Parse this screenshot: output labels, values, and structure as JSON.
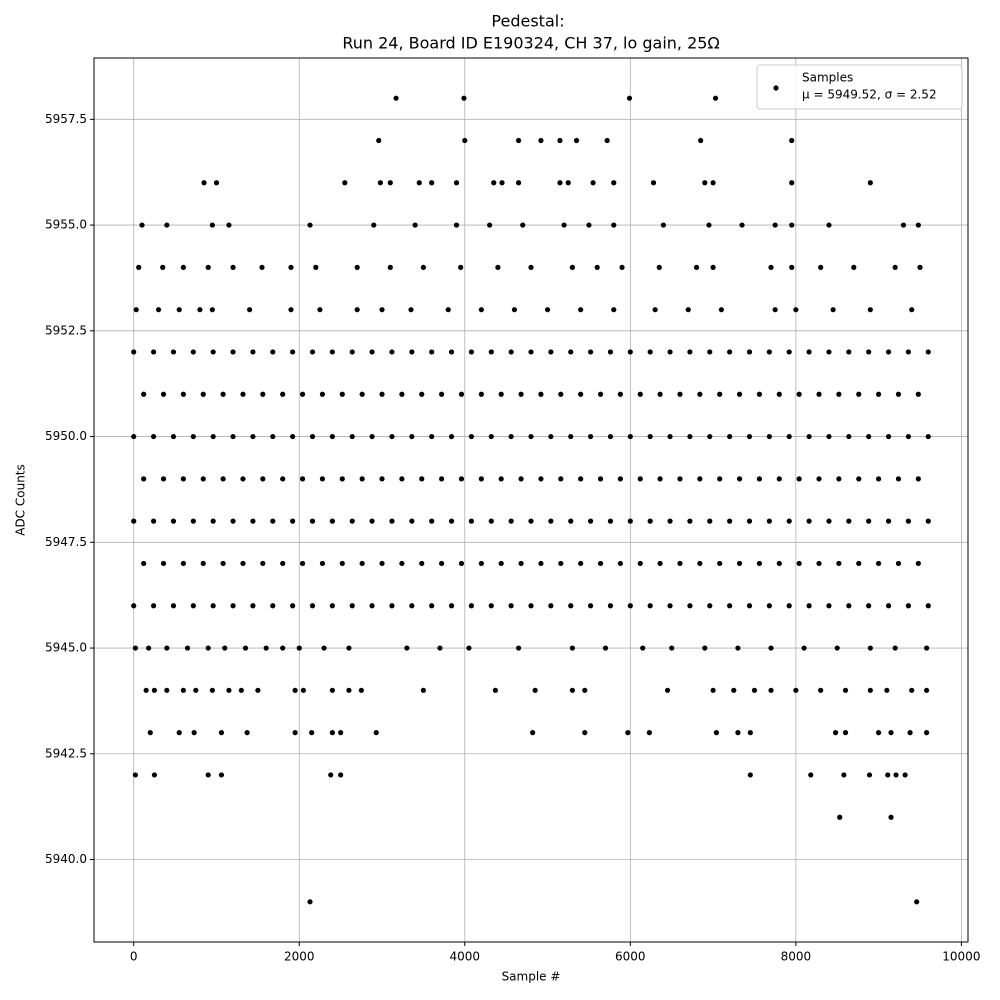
{
  "chart_data": {
    "type": "scatter",
    "title": "Pedestal:",
    "subtitle": "Run 24, Board ID E190324, CH 37, lo gain, 25Ω",
    "x_label": "Sample #",
    "y_label": "ADC Counts",
    "legend_note": "μ = 5949.52, σ = 2.52",
    "legend": "upper right",
    "grid": true,
    "xlim": [
      -480,
      10080
    ],
    "ylim": [
      5938.05,
      5958.95
    ],
    "xticks": [
      0,
      2000,
      4000,
      6000,
      8000,
      10000
    ],
    "yticks": [
      {
        "value": 5940,
        "label": "5940.0"
      },
      {
        "value": 5942.5,
        "label": "5942.5"
      },
      {
        "value": 5945,
        "label": "5945.0"
      },
      {
        "value": 5947.5,
        "label": "5947.5"
      },
      {
        "value": 5950,
        "label": "5950.0"
      },
      {
        "value": 5952.5,
        "label": "5952.5"
      },
      {
        "value": 5955,
        "label": "5955.0"
      },
      {
        "value": 5957.5,
        "label": "5957.5"
      }
    ],
    "series": [
      {
        "name": "Samples",
        "color": "#000000",
        "x": [
          0,
          240,
          480,
          720,
          960,
          1200,
          1440,
          1680,
          1920,
          2160,
          2400,
          2640,
          2880,
          3120,
          3360,
          3600,
          3840,
          4080,
          4320,
          4560,
          4800,
          5040,
          5280,
          5520,
          5760,
          6000,
          6240,
          6480,
          6720,
          6960,
          7200,
          7440,
          7680,
          7920,
          8160,
          8400,
          8640,
          8880,
          9120,
          9360,
          9600,
          120,
          360,
          600,
          840,
          1080,
          1320,
          1560,
          1800,
          2040,
          2280,
          2520,
          2760,
          3000,
          3240,
          3480,
          3720,
          3960,
          4200,
          4440,
          4680,
          4920,
          5160,
          5400,
          5640,
          5880,
          6120,
          6360,
          6600,
          6840,
          7080,
          7320,
          7560,
          7800,
          8040,
          8280,
          8520,
          8760,
          9000,
          9240,
          9480,
          0,
          240,
          480,
          720,
          960,
          1200,
          1440,
          1680,
          1920,
          2160,
          2400,
          2640,
          2880,
          3120,
          3360,
          3600,
          3840,
          4080,
          4320,
          4560,
          4800,
          5040,
          5280,
          5520,
          5760,
          6000,
          6240,
          6480,
          6720,
          6960,
          7200,
          7440,
          7680,
          7920,
          8160,
          8400,
          8640,
          8880,
          9120,
          9360,
          9600,
          120,
          360,
          600,
          840,
          1080,
          1320,
          1560,
          1800,
          2040,
          2280,
          2520,
          2760,
          3000,
          3240,
          3480,
          3720,
          3960,
          4200,
          4440,
          4680,
          4920,
          5160,
          5400,
          5640,
          5880,
          6120,
          6360,
          6600,
          6840,
          7080,
          7320,
          7560,
          7800,
          8040,
          8280,
          8520,
          8760,
          9000,
          9240,
          9480,
          0,
          240,
          480,
          720,
          960,
          1200,
          1440,
          1680,
          1920,
          2160,
          2400,
          2640,
          2880,
          3120,
          3360,
          3600,
          3840,
          4080,
          4320,
          4560,
          4800,
          5040,
          5280,
          5520,
          5760,
          6000,
          6240,
          6480,
          6720,
          6960,
          7200,
          7440,
          7680,
          7920,
          8160,
          8400,
          8640,
          8880,
          9120,
          9360,
          9600,
          120,
          360,
          600,
          840,
          1080,
          1320,
          1560,
          1800,
          2040,
          2280,
          2520,
          2760,
          3000,
          3240,
          3480,
          3720,
          3960,
          4200,
          4440,
          4680,
          4920,
          5160,
          5400,
          5640,
          5880,
          6120,
          6360,
          6600,
          6840,
          7080,
          7320,
          7560,
          7800,
          8040,
          8280,
          8520,
          8760,
          9000,
          9240,
          9480,
          0,
          240,
          480,
          720,
          960,
          1200,
          1440,
          1680,
          1920,
          2160,
          2400,
          2640,
          2880,
          3120,
          3360,
          3600,
          3840,
          4080,
          4320,
          4560,
          4800,
          5040,
          5280,
          5520,
          5760,
          6000,
          6240,
          6480,
          6720,
          6960,
          7200,
          7440,
          7680,
          7920,
          8160,
          8400,
          8640,
          8880,
          9120,
          9360,
          9600,
          20,
          180,
          400,
          650,
          900,
          1100,
          1350,
          1600,
          1800,
          2000,
          2300,
          2600,
          3300,
          3700,
          4050,
          4650,
          5300,
          5700,
          6150,
          6500,
          6900,
          7300,
          7700,
          8100,
          8500,
          8900,
          9200,
          9580,
          30,
          300,
          550,
          800,
          950,
          1400,
          1900,
          2250,
          2700,
          3000,
          3350,
          3800,
          4200,
          4600,
          5000,
          5400,
          5800,
          6300,
          6700,
          7100,
          7750,
          8000,
          8450,
          8900,
          9400,
          60,
          350,
          600,
          900,
          1200,
          1550,
          1900,
          2200,
          2700,
          3100,
          3500,
          3950,
          4400,
          4800,
          5300,
          5600,
          5900,
          6350,
          6800,
          7000,
          7700,
          7950,
          8300,
          8700,
          9200,
          9500,
          100,
          400,
          950,
          1150,
          2130,
          2900,
          3400,
          3900,
          4300,
          4700,
          5200,
          5500,
          5800,
          6400,
          6950,
          7350,
          7750,
          7950,
          8400,
          9300,
          9480,
          850,
          1000,
          2550,
          2980,
          3100,
          3450,
          3600,
          3900,
          4350,
          4450,
          4650,
          5150,
          5250,
          5550,
          5800,
          6280,
          6900,
          7000,
          7950,
          8900,
          2960,
          4000,
          4650,
          4920,
          5150,
          5350,
          5720,
          6850,
          7950,
          3170,
          3990,
          5990,
          7030,
          150,
          250,
          400,
          600,
          750,
          950,
          1150,
          1300,
          1500,
          1950,
          2050,
          2400,
          2600,
          2750,
          3500,
          4370,
          4850,
          5300,
          5450,
          6450,
          7000,
          7250,
          7500,
          7700,
          8000,
          8300,
          8600,
          8900,
          9100,
          9400,
          9580,
          200,
          550,
          730,
          1060,
          1370,
          1950,
          2150,
          2400,
          2500,
          2930,
          4820,
          5450,
          5970,
          6230,
          7040,
          7300,
          7450,
          8480,
          8600,
          9000,
          9150,
          9380,
          9580,
          20,
          250,
          900,
          1060,
          2380,
          2500,
          7450,
          8180,
          8580,
          8890,
          9110,
          9210,
          9320,
          8530,
          9150,
          2130,
          9460
        ],
        "values": [
          5952,
          5952,
          5952,
          5952,
          5952,
          5952,
          5952,
          5952,
          5952,
          5952,
          5952,
          5952,
          5952,
          5952,
          5952,
          5952,
          5952,
          5952,
          5952,
          5952,
          5952,
          5952,
          5952,
          5952,
          5952,
          5952,
          5952,
          5952,
          5952,
          5952,
          5952,
          5952,
          5952,
          5952,
          5952,
          5952,
          5952,
          5952,
          5952,
          5952,
          5952,
          5951,
          5951,
          5951,
          5951,
          5951,
          5951,
          5951,
          5951,
          5951,
          5951,
          5951,
          5951,
          5951,
          5951,
          5951,
          5951,
          5951,
          5951,
          5951,
          5951,
          5951,
          5951,
          5951,
          5951,
          5951,
          5951,
          5951,
          5951,
          5951,
          5951,
          5951,
          5951,
          5951,
          5951,
          5951,
          5951,
          5951,
          5951,
          5951,
          5951,
          5950,
          5950,
          5950,
          5950,
          5950,
          5950,
          5950,
          5950,
          5950,
          5950,
          5950,
          5950,
          5950,
          5950,
          5950,
          5950,
          5950,
          5950,
          5950,
          5950,
          5950,
          5950,
          5950,
          5950,
          5950,
          5950,
          5950,
          5950,
          5950,
          5950,
          5950,
          5950,
          5950,
          5950,
          5950,
          5950,
          5950,
          5950,
          5950,
          5950,
          5950,
          5949,
          5949,
          5949,
          5949,
          5949,
          5949,
          5949,
          5949,
          5949,
          5949,
          5949,
          5949,
          5949,
          5949,
          5949,
          5949,
          5949,
          5949,
          5949,
          5949,
          5949,
          5949,
          5949,
          5949,
          5949,
          5949,
          5949,
          5949,
          5949,
          5949,
          5949,
          5949,
          5949,
          5949,
          5949,
          5949,
          5949,
          5949,
          5949,
          5949,
          5948,
          5948,
          5948,
          5948,
          5948,
          5948,
          5948,
          5948,
          5948,
          5948,
          5948,
          5948,
          5948,
          5948,
          5948,
          5948,
          5948,
          5948,
          5948,
          5948,
          5948,
          5948,
          5948,
          5948,
          5948,
          5948,
          5948,
          5948,
          5948,
          5948,
          5948,
          5948,
          5948,
          5948,
          5948,
          5948,
          5948,
          5948,
          5948,
          5948,
          5948,
          5947,
          5947,
          5947,
          5947,
          5947,
          5947,
          5947,
          5947,
          5947,
          5947,
          5947,
          5947,
          5947,
          5947,
          5947,
          5947,
          5947,
          5947,
          5947,
          5947,
          5947,
          5947,
          5947,
          5947,
          5947,
          5947,
          5947,
          5947,
          5947,
          5947,
          5947,
          5947,
          5947,
          5947,
          5947,
          5947,
          5947,
          5947,
          5947,
          5947,
          5946,
          5946,
          5946,
          5946,
          5946,
          5946,
          5946,
          5946,
          5946,
          5946,
          5946,
          5946,
          5946,
          5946,
          5946,
          5946,
          5946,
          5946,
          5946,
          5946,
          5946,
          5946,
          5946,
          5946,
          5946,
          5946,
          5946,
          5946,
          5946,
          5946,
          5946,
          5946,
          5946,
          5946,
          5946,
          5946,
          5946,
          5946,
          5946,
          5946,
          5946,
          5945,
          5945,
          5945,
          5945,
          5945,
          5945,
          5945,
          5945,
          5945,
          5945,
          5945,
          5945,
          5945,
          5945,
          5945,
          5945,
          5945,
          5945,
          5945,
          5945,
          5945,
          5945,
          5945,
          5945,
          5945,
          5945,
          5945,
          5945,
          5953,
          5953,
          5953,
          5953,
          5953,
          5953,
          5953,
          5953,
          5953,
          5953,
          5953,
          5953,
          5953,
          5953,
          5953,
          5953,
          5953,
          5953,
          5953,
          5953,
          5953,
          5953,
          5953,
          5953,
          5953,
          5954,
          5954,
          5954,
          5954,
          5954,
          5954,
          5954,
          5954,
          5954,
          5954,
          5954,
          5954,
          5954,
          5954,
          5954,
          5954,
          5954,
          5954,
          5954,
          5954,
          5954,
          5954,
          5954,
          5954,
          5954,
          5954,
          5955,
          5955,
          5955,
          5955,
          5955,
          5955,
          5955,
          5955,
          5955,
          5955,
          5955,
          5955,
          5955,
          5955,
          5955,
          5955,
          5955,
          5955,
          5955,
          5955,
          5955,
          5956,
          5956,
          5956,
          5956,
          5956,
          5956,
          5956,
          5956,
          5956,
          5956,
          5956,
          5956,
          5956,
          5956,
          5956,
          5956,
          5956,
          5956,
          5956,
          5956,
          5957,
          5957,
          5957,
          5957,
          5957,
          5957,
          5957,
          5957,
          5957,
          5958,
          5958,
          5958,
          5958,
          5944,
          5944,
          5944,
          5944,
          5944,
          5944,
          5944,
          5944,
          5944,
          5944,
          5944,
          5944,
          5944,
          5944,
          5944,
          5944,
          5944,
          5944,
          5944,
          5944,
          5944,
          5944,
          5944,
          5944,
          5944,
          5944,
          5944,
          5944,
          5944,
          5944,
          5944,
          5943,
          5943,
          5943,
          5943,
          5943,
          5943,
          5943,
          5943,
          5943,
          5943,
          5943,
          5943,
          5943,
          5943,
          5943,
          5943,
          5943,
          5943,
          5943,
          5943,
          5943,
          5943,
          5943,
          5942,
          5942,
          5942,
          5942,
          5942,
          5942,
          5942,
          5942,
          5942,
          5942,
          5942,
          5942,
          5942,
          5941,
          5941,
          5939,
          5939
        ]
      }
    ]
  }
}
